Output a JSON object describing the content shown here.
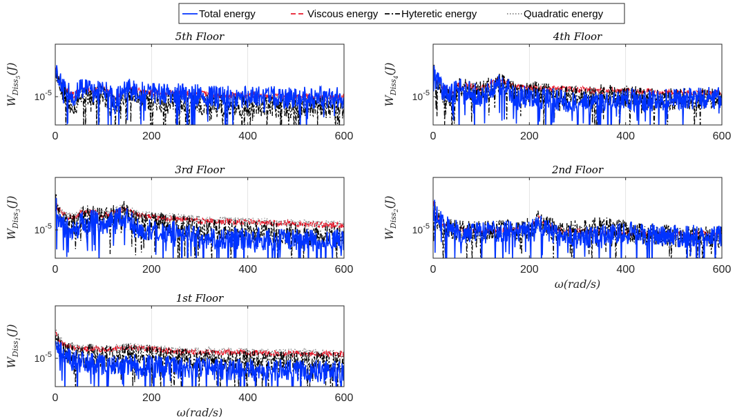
{
  "legend": {
    "entries": [
      {
        "label": "Total energy",
        "color": "#0033ff",
        "dash": "solid"
      },
      {
        "label": "Viscous energy",
        "color": "#e8182a",
        "dash": "dashed"
      },
      {
        "label": "Hyteretic energy",
        "color": "#000000",
        "dash": "dashdot"
      },
      {
        "label": "Quadratic energy",
        "color": "#808080",
        "dash": "dotted"
      }
    ]
  },
  "chart_data": [
    {
      "type": "line",
      "title": "5th  Floor",
      "ylabel": "W_Diss5(J)",
      "ylabel_main": "W",
      "ylabel_sub": "Diss",
      "ylabel_subsub": "5",
      "ylabel_unit": "(J)",
      "xlabel": "",
      "xlim": [
        0,
        600
      ],
      "xticks": [
        "0",
        "200",
        "400",
        "600"
      ],
      "ytick_base": "10",
      "ytick_exp": "-5",
      "yscale": "log",
      "grid": true,
      "series": [
        {
          "name": "Total energy",
          "x": [
            0,
            5,
            20,
            40,
            55,
            80,
            100,
            125,
            150,
            175,
            200,
            250,
            300,
            350,
            400,
            450,
            500,
            550,
            600
          ],
          "y": [
            3.2e-05,
            1.9e-05,
            1.3e-05,
            1e-05,
            1.4e-05,
            1.2e-05,
            1.3e-05,
            9e-06,
            1.3e-05,
            1.2e-05,
            1.1e-05,
            1.1e-05,
            1.05e-05,
            1e-05,
            1e-05,
            9.8e-06,
            9.6e-06,
            9.5e-06,
            9.5e-06
          ]
        },
        {
          "name": "Viscous energy",
          "x": [
            0,
            5,
            20,
            40,
            55,
            80,
            100,
            125,
            150,
            175,
            200,
            250,
            300,
            350,
            400,
            450,
            500,
            550,
            600
          ],
          "y": [
            3.3e-05,
            2e-05,
            1.35e-05,
            1.05e-05,
            1.45e-05,
            1.25e-05,
            1.35e-05,
            9.5e-06,
            1.35e-05,
            1.25e-05,
            1.15e-05,
            1.15e-05,
            1.1e-05,
            1.05e-05,
            1.05e-05,
            1.02e-05,
            1e-05,
            9.8e-06,
            9.8e-06
          ]
        },
        {
          "name": "Hyteretic energy",
          "x": [
            0,
            5,
            20,
            40,
            55,
            80,
            100,
            125,
            150,
            175,
            200,
            250,
            300,
            350,
            400,
            450,
            500,
            550,
            600
          ],
          "y": [
            3e-05,
            1.7e-05,
            1.1e-05,
            6e-06,
            1.3e-05,
            1e-05,
            1.1e-05,
            7e-06,
            1.1e-05,
            9e-06,
            8e-06,
            8e-06,
            7.5e-06,
            7e-06,
            7.2e-06,
            7e-06,
            6.5e-06,
            6.8e-06,
            6.6e-06
          ]
        },
        {
          "name": "Quadratic energy",
          "x": [
            0,
            5,
            20,
            40,
            55,
            80,
            100,
            125,
            150,
            175,
            200,
            250,
            300,
            350,
            400,
            450,
            500,
            550,
            600
          ],
          "y": [
            3.1e-05,
            1.8e-05,
            1.25e-05,
            9.5e-06,
            1.35e-05,
            1.15e-05,
            1.25e-05,
            8.5e-06,
            1.25e-05,
            1.15e-05,
            1.05e-05,
            1.05e-05,
            1e-05,
            9.5e-06,
            9.5e-06,
            9.3e-06,
            9e-06,
            9e-06,
            9e-06
          ]
        }
      ]
    },
    {
      "type": "line",
      "title": "4th  Floor",
      "ylabel": "W_Diss4(J)",
      "ylabel_main": "W",
      "ylabel_sub": "Diss",
      "ylabel_subsub": "4",
      "ylabel_unit": "(J)",
      "xlabel": "",
      "xlim": [
        0,
        600
      ],
      "xticks": [
        "0",
        "200",
        "400",
        "600"
      ],
      "ytick_base": "10",
      "ytick_exp": "-5",
      "yscale": "log",
      "grid": true,
      "series": [
        {
          "name": "Total energy",
          "x": [
            0,
            5,
            20,
            40,
            55,
            80,
            100,
            140,
            175,
            200,
            250,
            300,
            350,
            400,
            450,
            500,
            550,
            600
          ],
          "y": [
            3.2e-05,
            1.9e-05,
            1.3e-05,
            1.1e-05,
            1.4e-05,
            1.2e-05,
            1e-05,
            1.6e-05,
            1e-05,
            1e-05,
            9e-06,
            8e-06,
            8e-06,
            9e-06,
            8.5e-06,
            9e-06,
            9.5e-06,
            1e-05
          ]
        },
        {
          "name": "Viscous energy",
          "x": [
            0,
            5,
            20,
            40,
            55,
            80,
            100,
            140,
            175,
            200,
            250,
            300,
            350,
            400,
            450,
            500,
            550,
            600
          ],
          "y": [
            3.3e-05,
            2e-05,
            1.4e-05,
            1.2e-05,
            1.6e-05,
            1.45e-05,
            1.35e-05,
            1.9e-05,
            1.4e-05,
            1.4e-05,
            1.35e-05,
            1.3e-05,
            1.25e-05,
            1.25e-05,
            1.2e-05,
            1.15e-05,
            1.15e-05,
            1.15e-05
          ]
        },
        {
          "name": "Hyteretic energy",
          "x": [
            0,
            5,
            20,
            40,
            55,
            80,
            100,
            140,
            175,
            200,
            250,
            300,
            350,
            400,
            450,
            500,
            550,
            600
          ],
          "y": [
            3e-05,
            1.7e-05,
            1.2e-05,
            8e-06,
            1.4e-05,
            1.3e-05,
            1.2e-05,
            1.7e-05,
            1.1e-05,
            1.2e-05,
            1.1e-05,
            1e-05,
            1.05e-05,
            1e-05,
            9.5e-06,
            9e-06,
            9.5e-06,
            9e-06
          ]
        },
        {
          "name": "Quadratic energy",
          "x": [
            0,
            5,
            20,
            40,
            55,
            80,
            100,
            140,
            175,
            200,
            250,
            300,
            350,
            400,
            450,
            500,
            550,
            600
          ],
          "y": [
            3.1e-05,
            1.8e-05,
            1.3e-05,
            1.1e-05,
            1.5e-05,
            1.35e-05,
            1.25e-05,
            1.8e-05,
            1.3e-05,
            1.3e-05,
            1.25e-05,
            1.2e-05,
            1.15e-05,
            1.15e-05,
            1.1e-05,
            1.05e-05,
            1.05e-05,
            1.05e-05
          ]
        }
      ]
    },
    {
      "type": "line",
      "title": "3rd  Floor",
      "ylabel": "W_Diss3(J)",
      "ylabel_main": "W",
      "ylabel_sub": "Diss",
      "ylabel_subsub": "3",
      "ylabel_unit": "(J)",
      "xlabel": "",
      "xlim": [
        0,
        600
      ],
      "xticks": [
        "0",
        "200",
        "400",
        "600"
      ],
      "ytick_base": "10",
      "ytick_exp": "-5",
      "yscale": "log",
      "grid": true,
      "series": [
        {
          "name": "Total energy",
          "x": [
            0,
            5,
            20,
            40,
            55,
            80,
            100,
            140,
            175,
            200,
            250,
            300,
            350,
            400,
            450,
            500,
            550,
            600
          ],
          "y": [
            3e-05,
            1.6e-05,
            1.1e-05,
            9e-06,
            1.3e-05,
            1.4e-05,
            1.2e-05,
            1.7e-05,
            1e-05,
            1e-05,
            9e-06,
            7.5e-06,
            7e-06,
            7.2e-06,
            7e-06,
            7e-06,
            6.5e-06,
            7e-06
          ]
        },
        {
          "name": "Viscous energy",
          "x": [
            0,
            5,
            20,
            40,
            55,
            80,
            100,
            140,
            175,
            200,
            250,
            300,
            350,
            400,
            450,
            500,
            550,
            600
          ],
          "y": [
            3.4e-05,
            2.2e-05,
            1.7e-05,
            1.5e-05,
            1.9e-05,
            1.9e-05,
            1.7e-05,
            2.2e-05,
            1.7e-05,
            1.6e-05,
            1.5e-05,
            1.4e-05,
            1.35e-05,
            1.35e-05,
            1.3e-05,
            1.25e-05,
            1.2e-05,
            1.2e-05
          ]
        },
        {
          "name": "Hyteretic energy",
          "x": [
            0,
            5,
            20,
            40,
            55,
            80,
            100,
            140,
            175,
            200,
            250,
            300,
            350,
            400,
            450,
            500,
            550,
            600
          ],
          "y": [
            3.2e-05,
            1.9e-05,
            1.4e-05,
            1.2e-05,
            1.6e-05,
            1.7e-05,
            1.5e-05,
            2e-05,
            1.3e-05,
            1.3e-05,
            1.2e-05,
            1e-05,
            1e-05,
            9.5e-06,
            9e-06,
            8.5e-06,
            8e-06,
            8e-06
          ]
        },
        {
          "name": "Quadratic energy",
          "x": [
            0,
            5,
            20,
            40,
            55,
            80,
            100,
            140,
            175,
            200,
            250,
            300,
            350,
            400,
            450,
            500,
            550,
            600
          ],
          "y": [
            3.5e-05,
            2.3e-05,
            1.8e-05,
            1.6e-05,
            2e-05,
            2e-05,
            1.8e-05,
            2.3e-05,
            1.8e-05,
            1.7e-05,
            1.6e-05,
            1.5e-05,
            1.45e-05,
            1.4e-05,
            1.35e-05,
            1.3e-05,
            1.25e-05,
            1.25e-05
          ]
        }
      ]
    },
    {
      "type": "line",
      "title": "2nd  Floor",
      "ylabel": "W_Diss2(J)",
      "ylabel_main": "W",
      "ylabel_sub": "Diss",
      "ylabel_subsub": "2",
      "ylabel_unit": "(J)",
      "xlabel": "ω(rad/s)",
      "xlim": [
        0,
        600
      ],
      "xticks": [
        "0",
        "200",
        "400",
        "600"
      ],
      "ytick_base": "10",
      "ytick_exp": "-5",
      "yscale": "log",
      "grid": true,
      "series": [
        {
          "name": "Total energy",
          "x": [
            0,
            5,
            20,
            40,
            60,
            80,
            100,
            150,
            200,
            220,
            250,
            300,
            350,
            400,
            450,
            500,
            550,
            600
          ],
          "y": [
            3e-05,
            1.8e-05,
            1.2e-05,
            1e-05,
            9e-06,
            9e-06,
            9e-06,
            9.5e-06,
            9.5e-06,
            1.2e-05,
            8.5e-06,
            7.5e-06,
            8e-06,
            9e-06,
            8.5e-06,
            8e-06,
            8e-06,
            8e-06
          ]
        },
        {
          "name": "Viscous energy",
          "x": [
            0,
            5,
            20,
            40,
            60,
            80,
            100,
            150,
            200,
            220,
            250,
            300,
            350,
            400,
            450,
            500,
            550,
            600
          ],
          "y": [
            3.1e-05,
            1.9e-05,
            1.25e-05,
            1.05e-05,
            1e-05,
            9.5e-06,
            9.5e-06,
            1e-05,
            1e-05,
            1.6e-05,
            1e-05,
            9.5e-06,
            9e-06,
            9e-06,
            8.5e-06,
            8.5e-06,
            8.5e-06,
            8.5e-06
          ]
        },
        {
          "name": "Hyteretic energy",
          "x": [
            0,
            5,
            20,
            40,
            60,
            80,
            100,
            150,
            200,
            220,
            250,
            300,
            350,
            400,
            450,
            500,
            550,
            600
          ],
          "y": [
            2.9e-05,
            1.7e-05,
            1.15e-05,
            1e-05,
            9.5e-06,
            9.5e-06,
            9.5e-06,
            1e-05,
            1.05e-05,
            1.5e-05,
            1e-05,
            1e-05,
            1.1e-05,
            9.5e-06,
            8.5e-06,
            8e-06,
            7.5e-06,
            7.5e-06
          ]
        },
        {
          "name": "Quadratic energy",
          "x": [
            0,
            5,
            20,
            40,
            60,
            80,
            100,
            150,
            200,
            220,
            250,
            300,
            350,
            400,
            450,
            500,
            550,
            600
          ],
          "y": [
            2.8e-05,
            1.6e-05,
            1e-05,
            8.5e-06,
            8e-06,
            8e-06,
            8e-06,
            8.5e-06,
            8.5e-06,
            1.2e-05,
            8.5e-06,
            8e-06,
            8e-06,
            8e-06,
            7.5e-06,
            7.5e-06,
            7.2e-06,
            7e-06
          ]
        }
      ]
    },
    {
      "type": "line",
      "title": "1st  Floor",
      "ylabel": "W_Diss1(J)",
      "ylabel_main": "W",
      "ylabel_sub": "Diss",
      "ylabel_subsub": "1",
      "ylabel_unit": "(J)",
      "xlabel": "ω(rad/s)",
      "xlim": [
        0,
        600
      ],
      "xticks": [
        "0",
        "200",
        "400",
        "600"
      ],
      "ytick_base": "10",
      "ytick_exp": "-5",
      "yscale": "log",
      "grid": true,
      "series": [
        {
          "name": "Total energy",
          "x": [
            0,
            5,
            20,
            40,
            60,
            80,
            100,
            150,
            200,
            250,
            300,
            350,
            400,
            450,
            500,
            550,
            600
          ],
          "y": [
            2.6e-05,
            1.5e-05,
            1.05e-05,
            9e-06,
            8.5e-06,
            8e-06,
            7.8e-06,
            7.8e-06,
            7.5e-06,
            7e-06,
            6.8e-06,
            6.6e-06,
            6.5e-06,
            6.4e-06,
            6.3e-06,
            6.2e-06,
            6.2e-06
          ]
        },
        {
          "name": "Viscous energy",
          "x": [
            0,
            5,
            20,
            40,
            60,
            80,
            100,
            150,
            200,
            250,
            300,
            350,
            400,
            450,
            500,
            550,
            600
          ],
          "y": [
            3e-05,
            2e-05,
            1.6e-05,
            1.45e-05,
            1.4e-05,
            1.45e-05,
            1.35e-05,
            1.5e-05,
            1.4e-05,
            1.3e-05,
            1.25e-05,
            1.25e-05,
            1.22e-05,
            1.2e-05,
            1.2e-05,
            1.18e-05,
            1.15e-05
          ]
        },
        {
          "name": "Hyteretic energy",
          "x": [
            0,
            5,
            20,
            40,
            60,
            80,
            100,
            150,
            200,
            250,
            300,
            350,
            400,
            450,
            500,
            550,
            600
          ],
          "y": [
            2.8e-05,
            1.7e-05,
            1.3e-05,
            1.15e-05,
            1.1e-05,
            1.15e-05,
            1.05e-05,
            1.2e-05,
            1.1e-05,
            9.5e-06,
            9.5e-06,
            9e-06,
            9e-06,
            8.8e-06,
            9e-06,
            8.5e-06,
            8.5e-06
          ]
        },
        {
          "name": "Quadratic energy",
          "x": [
            0,
            5,
            20,
            40,
            60,
            80,
            100,
            150,
            200,
            250,
            300,
            350,
            400,
            450,
            500,
            550,
            600
          ],
          "y": [
            3.1e-05,
            2.1e-05,
            1.7e-05,
            1.5e-05,
            1.45e-05,
            1.5e-05,
            1.4e-05,
            1.55e-05,
            1.45e-05,
            1.35e-05,
            1.3e-05,
            1.3e-05,
            1.28e-05,
            1.25e-05,
            1.25e-05,
            1.22e-05,
            1.2e-05
          ]
        }
      ]
    }
  ]
}
